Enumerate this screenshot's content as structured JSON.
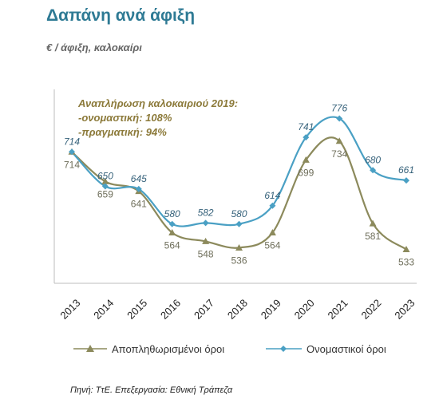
{
  "title": "Δαπάνη ανά άφιξη",
  "subtitle": "€ / άφιξη, καλοκαίρι",
  "source": "Πηνή: ΤτΕ. Επεξεργασία: Εθνική Τράπεζα",
  "annotation": {
    "line1": "Αναπλήρωση καλοκαιριού 2019:",
    "line2": "-ονομαστική: 108%",
    "line3": "-πραγματική: 94%"
  },
  "colors": {
    "nominal": "#4aa0c4",
    "real": "#8c8a5c",
    "title": "#2e7a94"
  },
  "chart_data": {
    "type": "line",
    "categories": [
      "2013",
      "2014",
      "2015",
      "2016",
      "2017",
      "2018",
      "2019",
      "2020",
      "2021",
      "2022",
      "2023"
    ],
    "series": [
      {
        "name": "Αποπληθωρισμένοι όροι",
        "values": [
          714,
          659,
          641,
          564,
          548,
          536,
          564,
          699,
          734,
          581,
          533
        ]
      },
      {
        "name": "Ονομαστικοί όροι",
        "values": [
          714,
          650,
          645,
          580,
          582,
          580,
          614,
          741,
          776,
          680,
          661
        ]
      }
    ],
    "ylim": [
      470,
      830
    ],
    "grid": false,
    "legend": "bottom"
  }
}
